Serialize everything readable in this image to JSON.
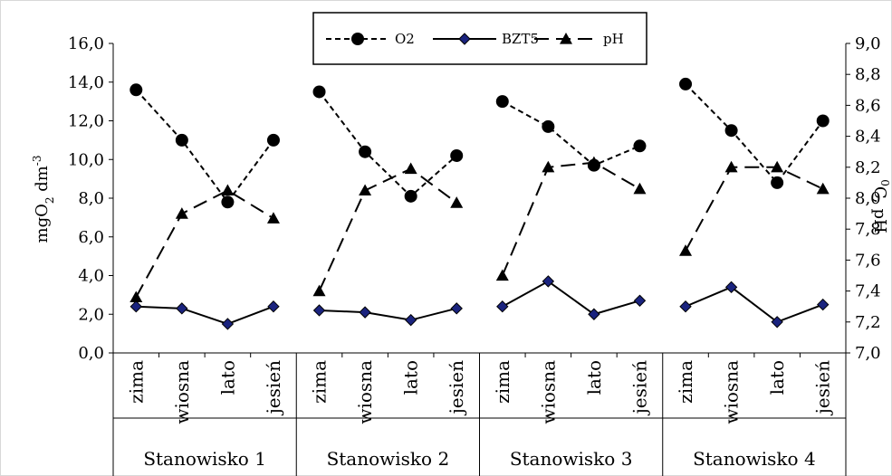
{
  "chart_data": {
    "type": "line",
    "ylabel_left_parts": [
      "mgO",
      "2",
      " dm",
      "-3"
    ],
    "ylabel_right_parts": [
      "0",
      "C, pH"
    ],
    "y_left": {
      "min": 0,
      "max": 16,
      "step": 2,
      "ticks": [
        "0,0",
        "2,0",
        "4,0",
        "6,0",
        "8,0",
        "10,0",
        "12,0",
        "14,0",
        "16,0"
      ]
    },
    "y_right": {
      "min": 7.0,
      "max": 9.0,
      "step": 0.2,
      "ticks": [
        "7,0",
        "7,2",
        "7,4",
        "7,6",
        "7,8",
        "8,0",
        "8,2",
        "8,4",
        "8,6",
        "8,8",
        "9,0"
      ]
    },
    "groups": [
      "Stanowisko 1",
      "Stanowisko 2",
      "Stanowisko 3",
      "Stanowisko 4"
    ],
    "seasons": [
      "zima",
      "wiosna",
      "lato",
      "jesień"
    ],
    "legend": {
      "position": "top-center"
    },
    "series": [
      {
        "name": "O2",
        "axis": "left",
        "style": "short-dash",
        "marker": "circle",
        "values": [
          [
            13.6,
            11.0,
            7.8,
            11.0
          ],
          [
            13.5,
            10.4,
            8.1,
            10.2
          ],
          [
            13.0,
            11.7,
            9.7,
            10.7
          ],
          [
            13.9,
            11.5,
            8.8,
            12.0
          ]
        ]
      },
      {
        "name": "BZT5",
        "axis": "left",
        "style": "solid",
        "marker": "diamond",
        "values": [
          [
            2.4,
            2.3,
            1.5,
            2.4
          ],
          [
            2.2,
            2.1,
            1.7,
            2.3
          ],
          [
            2.4,
            3.7,
            2.0,
            2.7
          ],
          [
            2.4,
            3.4,
            1.6,
            2.5
          ]
        ]
      },
      {
        "name": "pH",
        "axis": "right",
        "style": "long-dash",
        "marker": "triangle",
        "values": [
          [
            7.36,
            7.9,
            8.05,
            7.87
          ],
          [
            7.4,
            8.05,
            8.19,
            7.97
          ],
          [
            7.5,
            8.2,
            8.23,
            8.06
          ],
          [
            7.66,
            8.2,
            8.2,
            8.06
          ]
        ]
      }
    ]
  }
}
